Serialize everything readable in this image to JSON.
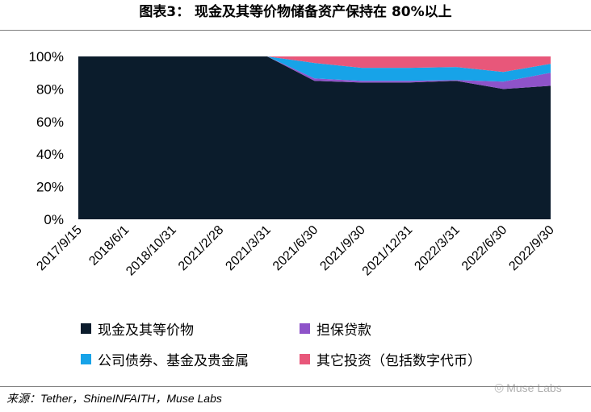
{
  "title": "图表3： 现金及其等价物储备资产保持在 80%以上",
  "source": "来源：Tether，ShineINFAITH，Muse Labs",
  "watermark": {
    "icon": "wechat-icon",
    "text": "Muse Labs"
  },
  "chart_data": {
    "type": "area",
    "stacked": true,
    "title": "",
    "xlabel": "",
    "ylabel": "",
    "ylim": [
      0,
      100
    ],
    "y_unit": "%",
    "y_ticks": [
      "0%",
      "20%",
      "40%",
      "60%",
      "80%",
      "100%"
    ],
    "grid": false,
    "legend_position": "bottom",
    "categories": [
      "2017/9/15",
      "2018/6/1",
      "2018/10/31",
      "2021/2/28",
      "2021/3/31",
      "2021/6/30",
      "2021/9/30",
      "2021/12/31",
      "2022/3/31",
      "2022/6/30",
      "2022/9/30"
    ],
    "series": [
      {
        "name": "现金及其等价物",
        "color": "#0b1c2c",
        "values": [
          100,
          100,
          100,
          100,
          100,
          85,
          84,
          84,
          85,
          80,
          82
        ]
      },
      {
        "name": "担保贷款",
        "color": "#8e53c9",
        "values": [
          0,
          0,
          0,
          0,
          0,
          1.5,
          1,
          1,
          0.5,
          4.5,
          8
        ]
      },
      {
        "name": "公司债券、基金及贵金属",
        "color": "#17a3e8",
        "values": [
          0,
          0,
          0,
          0,
          0,
          9.5,
          8,
          8,
          8,
          6,
          5.5
        ]
      },
      {
        "name": "其它投资（包括数字代币）",
        "color": "#e8577a",
        "values": [
          0,
          0,
          0,
          0,
          0,
          4,
          7,
          7,
          6.5,
          9.5,
          4.5
        ]
      }
    ]
  }
}
